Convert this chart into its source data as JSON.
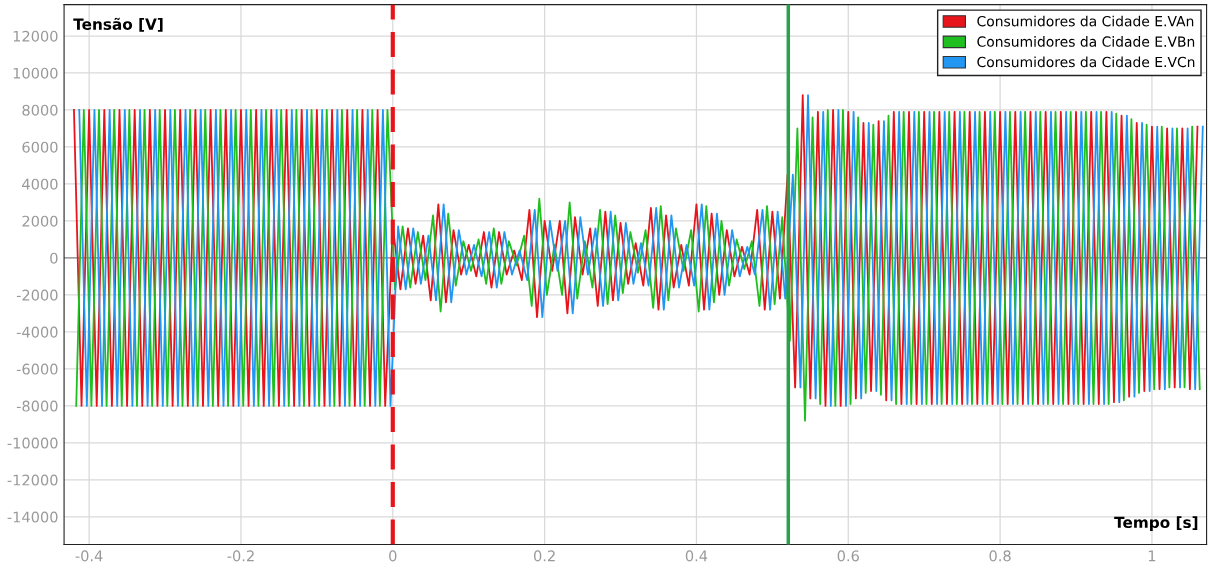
{
  "chart_data": {
    "type": "line",
    "xlabel": "Tempo [s]",
    "ylabel": "Tensão [V]",
    "xlim": [
      -0.433,
      1.072
    ],
    "ylim": [
      -15500,
      13700
    ],
    "xticks": [
      -0.4,
      -0.2,
      0,
      0.2,
      0.4,
      0.6,
      0.8,
      1
    ],
    "yticks": [
      -14000,
      -12000,
      -10000,
      -8000,
      -6000,
      -4000,
      -2000,
      0,
      2000,
      4000,
      6000,
      8000,
      10000,
      12000
    ],
    "grid": true,
    "legend": "top right",
    "marker": "none",
    "line_style": "solid",
    "ref_lines": [
      {
        "axis": "x",
        "value": 0,
        "color": "#e8141c",
        "line_style": "dashed"
      },
      {
        "axis": "x",
        "value": 0.521,
        "color": "#2aa24a",
        "line_style": "solid"
      }
    ],
    "series": [
      {
        "name": "Consumidores da Cidade E.VAn",
        "color": "#e8141c",
        "x": [
          -0.42,
          -0.41,
          -0.4,
          -0.39,
          -0.38,
          -0.37,
          -0.36,
          -0.35,
          -0.34,
          -0.33,
          -0.32,
          -0.31,
          -0.3,
          -0.29,
          -0.28,
          -0.27,
          -0.26,
          -0.25,
          -0.24,
          -0.23,
          -0.22,
          -0.21,
          -0.2,
          -0.19,
          -0.18,
          -0.17,
          -0.16,
          -0.15,
          -0.14,
          -0.13,
          -0.12,
          -0.11,
          -0.1,
          -0.09,
          -0.08,
          -0.07,
          -0.06,
          -0.05,
          -0.04,
          -0.03,
          -0.02,
          -0.01,
          0,
          0.01,
          0.02,
          0.03,
          0.04,
          0.05,
          0.06,
          0.07,
          0.08,
          0.09,
          0.1,
          0.11,
          0.12,
          0.13,
          0.14,
          0.15,
          0.16,
          0.17,
          0.18,
          0.19,
          0.2,
          0.21,
          0.22,
          0.23,
          0.24,
          0.25,
          0.26,
          0.27,
          0.28,
          0.29,
          0.3,
          0.31,
          0.32,
          0.33,
          0.34,
          0.35,
          0.36,
          0.37,
          0.38,
          0.39,
          0.4,
          0.41,
          0.42,
          0.43,
          0.44,
          0.45,
          0.46,
          0.47,
          0.48,
          0.49,
          0.5,
          0.51,
          0.52,
          0.53,
          0.54,
          0.55,
          0.56,
          0.57,
          0.58,
          0.59,
          0.6,
          0.61,
          0.62,
          0.63,
          0.64,
          0.65,
          0.66,
          0.67,
          0.68,
          0.69,
          0.7,
          0.71,
          0.72,
          0.73,
          0.74,
          0.75,
          0.76,
          0.77,
          0.78,
          0.79,
          0.8,
          0.81,
          0.82,
          0.83,
          0.84,
          0.85,
          0.86,
          0.87,
          0.88,
          0.89,
          0.9,
          0.91,
          0.92,
          0.93,
          0.94,
          0.95,
          0.96,
          0.97,
          0.98,
          0.99,
          1,
          1.01,
          1.02,
          1.03,
          1.04,
          1.05,
          1.06
        ],
        "values": [
          8000,
          -8000,
          8000,
          -8000,
          8000,
          -8000,
          8000,
          -8000,
          8000,
          -8000,
          8000,
          -8000,
          8000,
          -8000,
          8000,
          -8000,
          8000,
          -8000,
          8000,
          -8000,
          8000,
          -8000,
          8000,
          -8000,
          8000,
          -8000,
          8000,
          -8000,
          8000,
          -8000,
          8000,
          -8000,
          8000,
          -8000,
          8000,
          -8000,
          8000,
          -8000,
          8000,
          -8000,
          8000,
          -8000,
          1700,
          -1700,
          1600,
          -1400,
          1200,
          -2300,
          2900,
          -2400,
          1500,
          -900,
          700,
          -1000,
          1400,
          -1600,
          1400,
          -900,
          400,
          -1200,
          2600,
          -3200,
          2000,
          -700,
          2000,
          -3000,
          2200,
          -900,
          1600,
          -2600,
          2500,
          -2300,
          1900,
          -1400,
          800,
          -1500,
          2700,
          -2800,
          2300,
          -1600,
          700,
          -1500,
          2900,
          -2800,
          2400,
          -2000,
          1500,
          -1000,
          600,
          -900,
          2600,
          -2800,
          2500,
          -2200,
          4500,
          -7000,
          8800,
          -7600,
          7900,
          -8000,
          8000,
          -8000,
          7900,
          -7600,
          7300,
          -7200,
          7400,
          -7700,
          7900,
          -7900,
          7900,
          -7900,
          7900,
          -7900,
          7900,
          -7900,
          7900,
          -7900,
          7900,
          -7900,
          7900,
          -7900,
          7900,
          -7900,
          7900,
          -7900,
          7900,
          -7900,
          7900,
          -7900,
          7900,
          -7900,
          7900,
          -7900,
          7900,
          -7900,
          7900,
          -7800,
          7700,
          -7500,
          7300,
          -7200,
          7100,
          -7100,
          7000,
          -7000,
          7000,
          -7100,
          7100
        ]
      },
      {
        "name": "Consumidores da Cidade E.VBn",
        "color": "#1fbf1f",
        "x": [
          -0.417,
          -0.407,
          -0.397,
          -0.387,
          -0.377,
          -0.367,
          -0.357,
          -0.347,
          -0.337,
          -0.327,
          -0.317,
          -0.307,
          -0.297,
          -0.287,
          -0.277,
          -0.267,
          -0.257,
          -0.247,
          -0.237,
          -0.227,
          -0.217,
          -0.207,
          -0.197,
          -0.187,
          -0.177,
          -0.167,
          -0.157,
          -0.147,
          -0.137,
          -0.127,
          -0.117,
          -0.107,
          -0.097,
          -0.087,
          -0.077,
          -0.067,
          -0.057,
          -0.047,
          -0.037,
          -0.027,
          -0.017,
          -0.007,
          0.003,
          0.013,
          0.023,
          0.033,
          0.043,
          0.053,
          0.063,
          0.073,
          0.083,
          0.093,
          0.103,
          0.113,
          0.123,
          0.133,
          0.143,
          0.153,
          0.163,
          0.173,
          0.183,
          0.193,
          0.203,
          0.213,
          0.223,
          0.233,
          0.243,
          0.253,
          0.263,
          0.273,
          0.283,
          0.293,
          0.303,
          0.313,
          0.323,
          0.333,
          0.343,
          0.353,
          0.363,
          0.373,
          0.383,
          0.393,
          0.403,
          0.413,
          0.423,
          0.433,
          0.443,
          0.453,
          0.463,
          0.473,
          0.483,
          0.493,
          0.503,
          0.513,
          0.523,
          0.533,
          0.543,
          0.553,
          0.563,
          0.573,
          0.583,
          0.593,
          0.603,
          0.613,
          0.623,
          0.633,
          0.643,
          0.653,
          0.663,
          0.673,
          0.683,
          0.693,
          0.703,
          0.713,
          0.723,
          0.733,
          0.743,
          0.753,
          0.763,
          0.773,
          0.783,
          0.793,
          0.803,
          0.813,
          0.823,
          0.833,
          0.843,
          0.853,
          0.863,
          0.873,
          0.883,
          0.893,
          0.903,
          0.913,
          0.923,
          0.933,
          0.943,
          0.953,
          0.963,
          0.973,
          0.983,
          0.993,
          1.003,
          1.013,
          1.023,
          1.033,
          1.043,
          1.053,
          1.063
        ],
        "values": [
          -8000,
          8000,
          -8000,
          8000,
          -8000,
          8000,
          -8000,
          8000,
          -8000,
          8000,
          -8000,
          8000,
          -8000,
          8000,
          -8000,
          8000,
          -8000,
          8000,
          -8000,
          8000,
          -8000,
          8000,
          -8000,
          8000,
          -8000,
          8000,
          -8000,
          8000,
          -8000,
          8000,
          -8000,
          8000,
          -8000,
          8000,
          -8000,
          8000,
          -8000,
          8000,
          -8000,
          8000,
          -8000,
          8000,
          -1700,
          1700,
          -1600,
          1400,
          -1200,
          2300,
          -2900,
          2400,
          -1500,
          900,
          -700,
          1000,
          -1400,
          1600,
          -1400,
          900,
          -400,
          1200,
          -2600,
          3200,
          -2000,
          700,
          -2000,
          3000,
          -2200,
          900,
          -1600,
          2600,
          -2500,
          2300,
          -1900,
          1400,
          -800,
          1500,
          -2700,
          2800,
          -2300,
          1600,
          -700,
          1500,
          -2900,
          2800,
          -2400,
          2000,
          -1500,
          1000,
          -600,
          900,
          -2600,
          2800,
          -2500,
          2200,
          -4500,
          7000,
          -8800,
          7600,
          -7900,
          8000,
          -8000,
          8000,
          -7900,
          7600,
          -7300,
          7200,
          -7400,
          7700,
          -7900,
          7900,
          -7900,
          7900,
          -7900,
          7900,
          -7900,
          7900,
          -7900,
          7900,
          -7900,
          7900,
          -7900,
          7900,
          -7900,
          7900,
          -7900,
          7900,
          -7900,
          7900,
          -7900,
          7900,
          -7900,
          7900,
          -7900,
          7900,
          -7900,
          7900,
          -7900,
          7800,
          -7700,
          7500,
          -7300,
          7200,
          -7100,
          7100,
          -7000,
          7000,
          -7000,
          7100,
          -7100
        ]
      },
      {
        "name": "Consumidores da Cidade E.VCn",
        "color": "#2196f3",
        "x": [
          -0.413,
          -0.403,
          -0.393,
          -0.383,
          -0.373,
          -0.363,
          -0.353,
          -0.343,
          -0.333,
          -0.323,
          -0.313,
          -0.303,
          -0.293,
          -0.283,
          -0.273,
          -0.263,
          -0.253,
          -0.243,
          -0.233,
          -0.223,
          -0.213,
          -0.203,
          -0.193,
          -0.183,
          -0.173,
          -0.163,
          -0.153,
          -0.143,
          -0.133,
          -0.123,
          -0.113,
          -0.103,
          -0.093,
          -0.083,
          -0.073,
          -0.063,
          -0.053,
          -0.043,
          -0.033,
          -0.023,
          -0.013,
          -0.003,
          0.007,
          0.017,
          0.027,
          0.037,
          0.047,
          0.057,
          0.067,
          0.077,
          0.087,
          0.097,
          0.107,
          0.117,
          0.127,
          0.137,
          0.147,
          0.157,
          0.167,
          0.177,
          0.187,
          0.197,
          0.207,
          0.217,
          0.227,
          0.237,
          0.247,
          0.257,
          0.267,
          0.277,
          0.287,
          0.297,
          0.307,
          0.317,
          0.327,
          0.337,
          0.347,
          0.357,
          0.367,
          0.377,
          0.387,
          0.397,
          0.407,
          0.417,
          0.427,
          0.437,
          0.447,
          0.457,
          0.467,
          0.477,
          0.487,
          0.497,
          0.507,
          0.517,
          0.527,
          0.537,
          0.547,
          0.557,
          0.567,
          0.577,
          0.587,
          0.597,
          0.607,
          0.617,
          0.627,
          0.637,
          0.647,
          0.657,
          0.667,
          0.677,
          0.687,
          0.697,
          0.707,
          0.717,
          0.727,
          0.737,
          0.747,
          0.757,
          0.767,
          0.777,
          0.787,
          0.797,
          0.807,
          0.817,
          0.827,
          0.837,
          0.847,
          0.857,
          0.867,
          0.877,
          0.887,
          0.897,
          0.907,
          0.917,
          0.927,
          0.937,
          0.947,
          0.957,
          0.967,
          0.977,
          0.987,
          0.997,
          1.007,
          1.017,
          1.027,
          1.037,
          1.047,
          1.057,
          1.067
        ],
        "values": [
          8000,
          -8000,
          8000,
          -8000,
          8000,
          -8000,
          8000,
          -8000,
          8000,
          -8000,
          8000,
          -8000,
          8000,
          -8000,
          8000,
          -8000,
          8000,
          -8000,
          8000,
          -8000,
          8000,
          -8000,
          8000,
          -8000,
          8000,
          -8000,
          8000,
          -8000,
          8000,
          -8000,
          8000,
          -8000,
          8000,
          -8000,
          8000,
          -8000,
          8000,
          -8000,
          8000,
          -8000,
          8000,
          -8000,
          1700,
          -1700,
          1600,
          -1400,
          1200,
          -2300,
          2900,
          -2400,
          1500,
          -900,
          700,
          -1000,
          1400,
          -1600,
          1400,
          -900,
          400,
          -1200,
          2600,
          -3200,
          2000,
          -700,
          2000,
          -3000,
          2200,
          -900,
          1600,
          -2600,
          2500,
          -2300,
          1900,
          -1400,
          800,
          -1500,
          2700,
          -2800,
          2300,
          -1600,
          700,
          -1500,
          2900,
          -2800,
          2400,
          -2000,
          1500,
          -1000,
          600,
          -900,
          2600,
          -2800,
          2500,
          -2200,
          4500,
          -7000,
          8800,
          -7600,
          7900,
          -8000,
          8000,
          -8000,
          7900,
          -7600,
          7300,
          -7200,
          7400,
          -7700,
          7900,
          -7900,
          7900,
          -7900,
          7900,
          -7900,
          7900,
          -7900,
          7900,
          -7900,
          7900,
          -7900,
          7900,
          -7900,
          7900,
          -7900,
          7900,
          -7900,
          7900,
          -7900,
          7900,
          -7900,
          7900,
          -7900,
          7900,
          -7900,
          7900,
          -7900,
          7900,
          -7800,
          7700,
          -7500,
          7300,
          -7200,
          7100,
          -7100,
          7000,
          -7000,
          7000,
          -7100,
          7100
        ]
      }
    ]
  }
}
